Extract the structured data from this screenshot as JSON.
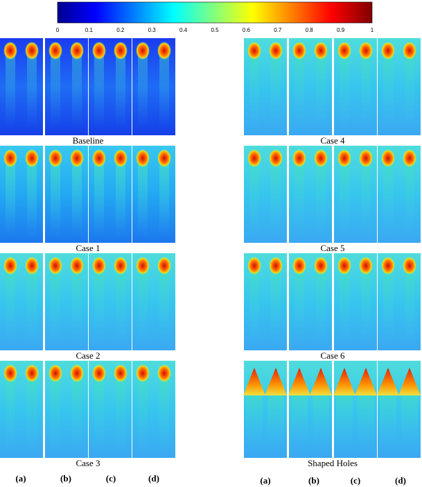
{
  "colorbar": {
    "ticks": [
      0,
      0.1,
      0.2,
      0.3,
      0.4,
      0.5,
      0.6,
      0.7,
      0.8,
      0.9,
      1
    ]
  },
  "panel_groups": [
    {
      "captions": [
        "Baseline",
        "Case 1",
        "Case 2",
        "Case 3"
      ],
      "column_labels": [
        "(a)",
        "(b)",
        "(c)",
        "(d)"
      ]
    },
    {
      "captions": [
        "Case 4",
        "Case 5",
        "Case 6",
        "Shaped Holes"
      ],
      "column_labels": [
        "(a)",
        "(b)",
        "(c)",
        "(d)"
      ]
    }
  ]
}
